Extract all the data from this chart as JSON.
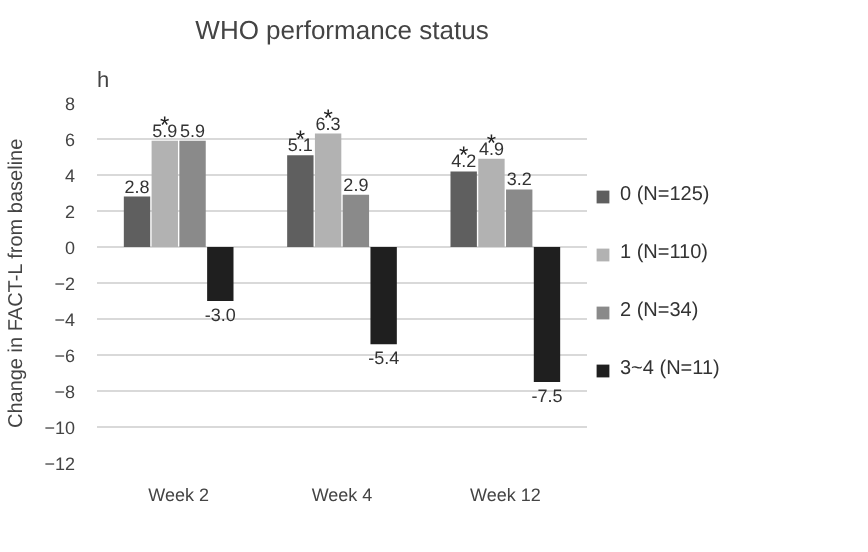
{
  "chart_data": {
    "type": "bar",
    "title": "WHO performance status",
    "ylabel": "Change in FACT-L from baseline",
    "categories": [
      "Week 2",
      "Week 4",
      "Week 12"
    ],
    "series": [
      {
        "name": "0 (N=125)",
        "color": "#5f5f5f",
        "values": [
          2.8,
          5.1,
          4.2
        ],
        "value_labels": [
          "2.8",
          "5.1",
          "4.2"
        ]
      },
      {
        "name": "1 (N=110)",
        "color": "#b2b2b2",
        "values": [
          5.9,
          6.3,
          4.9
        ],
        "value_labels": [
          "5.9",
          "6.3",
          "4.9"
        ]
      },
      {
        "name": "2 (N=34)",
        "color": "#8a8a8a",
        "values": [
          5.9,
          2.9,
          3.2
        ],
        "value_labels": [
          "5.9",
          "2.9",
          "3.2"
        ]
      },
      {
        "name": "3~4 (N=11)",
        "color": "#1f1f1f",
        "values": [
          -3.0,
          -5.4,
          -7.5
        ],
        "value_labels": [
          "-3.0",
          "-5.4",
          "-7.5"
        ]
      }
    ],
    "ylim": [
      -12,
      8
    ],
    "yticks": [
      -12,
      -10,
      -8,
      -6,
      -4,
      -2,
      0,
      2,
      4,
      6,
      8
    ],
    "grid": "y",
    "legend": "right",
    "annotations": [
      "h",
      "*",
      "*",
      "*",
      "*",
      "*"
    ]
  }
}
